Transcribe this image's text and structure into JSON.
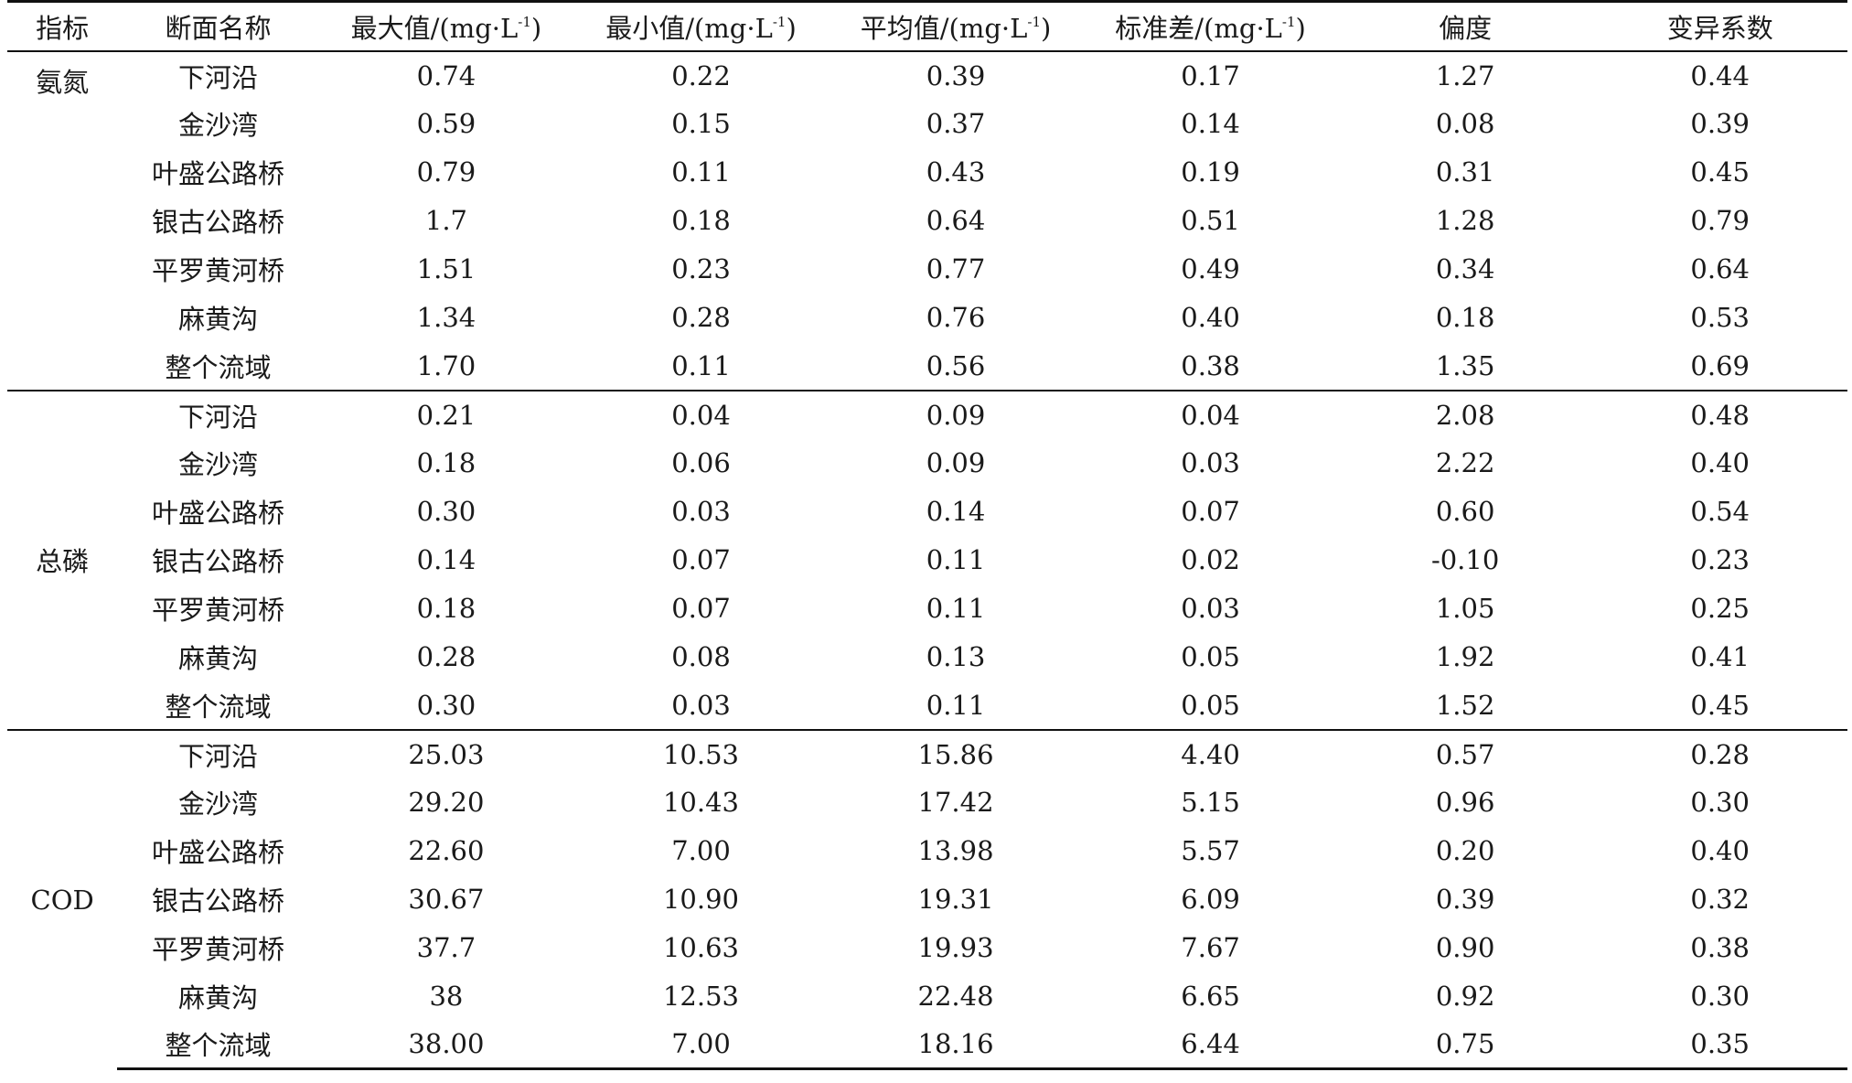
{
  "table": {
    "headers": {
      "indicator": "指标",
      "section": "断面名称",
      "max": "最大值/(mg·L",
      "min": "最小值/(mg·L",
      "mean": "平均值/(mg·L",
      "std": "标准差/(mg·L",
      "unit_sup": "-1",
      "unit_close": ")",
      "skew": "偏度",
      "cv": "变异系数"
    },
    "groups": [
      {
        "indicator": "氨氮",
        "rows": [
          {
            "name": "下河沿",
            "max": "0.74",
            "min": "0.22",
            "mean": "0.39",
            "std": "0.17",
            "skew": "1.27",
            "cv": "0.44"
          },
          {
            "name": "金沙湾",
            "max": "0.59",
            "min": "0.15",
            "mean": "0.37",
            "std": "0.14",
            "skew": "0.08",
            "cv": "0.39"
          },
          {
            "name": "叶盛公路桥",
            "max": "0.79",
            "min": "0.11",
            "mean": "0.43",
            "std": "0.19",
            "skew": "0.31",
            "cv": "0.45"
          },
          {
            "name": "银古公路桥",
            "max": "1.7",
            "min": "0.18",
            "mean": "0.64",
            "std": "0.51",
            "skew": "1.28",
            "cv": "0.79"
          },
          {
            "name": "平罗黄河桥",
            "max": "1.51",
            "min": "0.23",
            "mean": "0.77",
            "std": "0.49",
            "skew": "0.34",
            "cv": "0.64"
          },
          {
            "name": "麻黄沟",
            "max": "1.34",
            "min": "0.28",
            "mean": "0.76",
            "std": "0.40",
            "skew": "0.18",
            "cv": "0.53"
          },
          {
            "name": "整个流域",
            "max": "1.70",
            "min": "0.11",
            "mean": "0.56",
            "std": "0.38",
            "skew": "1.35",
            "cv": "0.69"
          }
        ]
      },
      {
        "indicator": "总磷",
        "rows": [
          {
            "name": "下河沿",
            "max": "0.21",
            "min": "0.04",
            "mean": "0.09",
            "std": "0.04",
            "skew": "2.08",
            "cv": "0.48"
          },
          {
            "name": "金沙湾",
            "max": "0.18",
            "min": "0.06",
            "mean": "0.09",
            "std": "0.03",
            "skew": "2.22",
            "cv": "0.40"
          },
          {
            "name": "叶盛公路桥",
            "max": "0.30",
            "min": "0.03",
            "mean": "0.14",
            "std": "0.07",
            "skew": "0.60",
            "cv": "0.54"
          },
          {
            "name": "银古公路桥",
            "max": "0.14",
            "min": "0.07",
            "mean": "0.11",
            "std": "0.02",
            "skew": "-0.10",
            "cv": "0.23"
          },
          {
            "name": "平罗黄河桥",
            "max": "0.18",
            "min": "0.07",
            "mean": "0.11",
            "std": "0.03",
            "skew": "1.05",
            "cv": "0.25"
          },
          {
            "name": "麻黄沟",
            "max": "0.28",
            "min": "0.08",
            "mean": "0.13",
            "std": "0.05",
            "skew": "1.92",
            "cv": "0.41"
          },
          {
            "name": "整个流域",
            "max": "0.30",
            "min": "0.03",
            "mean": "0.11",
            "std": "0.05",
            "skew": "1.52",
            "cv": "0.45"
          }
        ]
      },
      {
        "indicator": "COD",
        "rows": [
          {
            "name": "下河沿",
            "max": "25.03",
            "min": "10.53",
            "mean": "15.86",
            "std": "4.40",
            "skew": "0.57",
            "cv": "0.28"
          },
          {
            "name": "金沙湾",
            "max": "29.20",
            "min": "10.43",
            "mean": "17.42",
            "std": "5.15",
            "skew": "0.96",
            "cv": "0.30"
          },
          {
            "name": "叶盛公路桥",
            "max": "22.60",
            "min": "7.00",
            "mean": "13.98",
            "std": "5.57",
            "skew": "0.20",
            "cv": "0.40"
          },
          {
            "name": "银古公路桥",
            "max": "30.67",
            "min": "10.90",
            "mean": "19.31",
            "std": "6.09",
            "skew": "0.39",
            "cv": "0.32"
          },
          {
            "name": "平罗黄河桥",
            "max": "37.7",
            "min": "10.63",
            "mean": "19.93",
            "std": "7.67",
            "skew": "0.90",
            "cv": "0.38"
          },
          {
            "name": "麻黄沟",
            "max": "38",
            "min": "12.53",
            "mean": "22.48",
            "std": "6.65",
            "skew": "0.92",
            "cv": "0.30"
          },
          {
            "name": "整个流域",
            "max": "38.00",
            "min": "7.00",
            "mean": "18.16",
            "std": "6.44",
            "skew": "0.75",
            "cv": "0.35"
          }
        ]
      }
    ]
  }
}
